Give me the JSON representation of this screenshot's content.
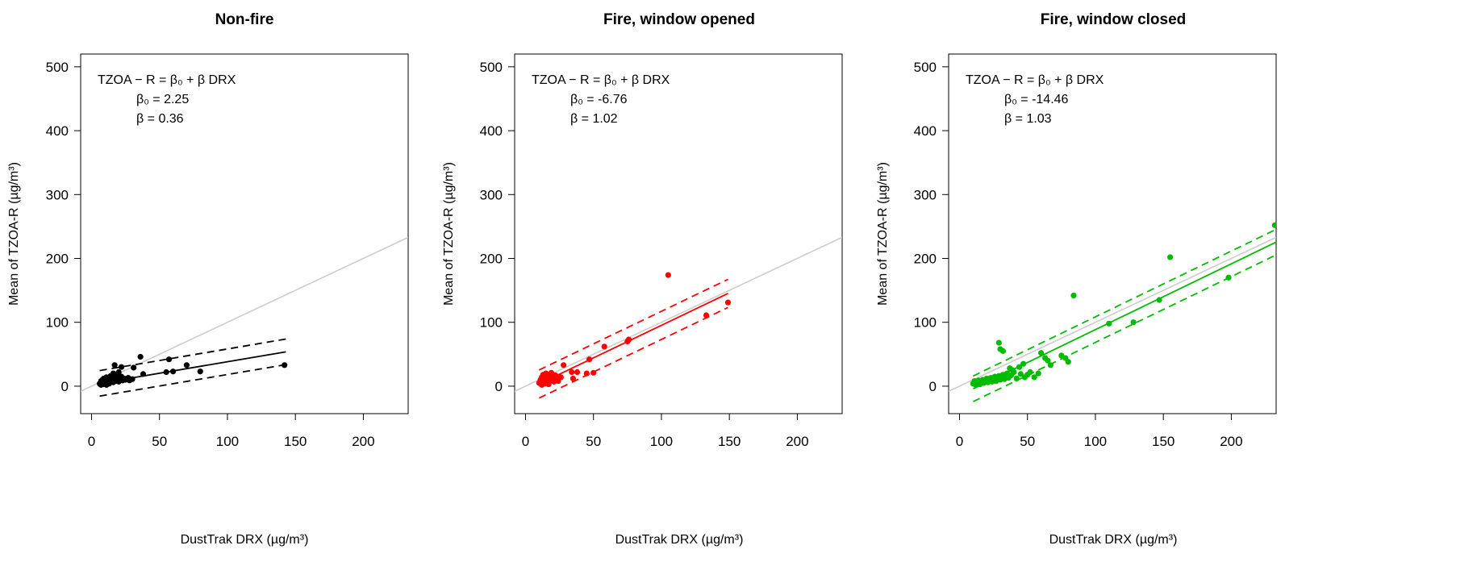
{
  "chart_data": [
    {
      "type": "scatter",
      "title": "Non-fire",
      "xlabel": "DustTrak DRX (µg/m³)",
      "ylabel": "Mean of TZOA-R (µg/m³)",
      "xlim": [
        -8,
        233
      ],
      "ylim": [
        -43,
        520
      ],
      "xticks": [
        "0",
        "50",
        "100",
        "150",
        "200"
      ],
      "yticks": [
        "0",
        "100",
        "200",
        "300",
        "400",
        "500"
      ],
      "color": "#000000",
      "annotation": {
        "equation": "TZOA − R = β₀ + β DRX",
        "beta0_label": "β₀ = 2.25",
        "beta_label": "β = 0.36"
      },
      "fit": {
        "intercept": 2.25,
        "slope": 0.36,
        "x_range": [
          6,
          143
        ],
        "band_offset": 20
      },
      "reference_line": {
        "slope": 1,
        "intercept": 0,
        "color": "#cccccc"
      },
      "points": [
        [
          6,
          4
        ],
        [
          7,
          8
        ],
        [
          7,
          2
        ],
        [
          8,
          6
        ],
        [
          8,
          10
        ],
        [
          9,
          3
        ],
        [
          9,
          12
        ],
        [
          10,
          5
        ],
        [
          10,
          8
        ],
        [
          11,
          2
        ],
        [
          11,
          14
        ],
        [
          12,
          6
        ],
        [
          12,
          9
        ],
        [
          13,
          11
        ],
        [
          13,
          4
        ],
        [
          14,
          7
        ],
        [
          14,
          16
        ],
        [
          15,
          9
        ],
        [
          15,
          12
        ],
        [
          16,
          6
        ],
        [
          16,
          20
        ],
        [
          17,
          10
        ],
        [
          17,
          33
        ],
        [
          18,
          8
        ],
        [
          18,
          14
        ],
        [
          19,
          12
        ],
        [
          19,
          17
        ],
        [
          20,
          7
        ],
        [
          20,
          22
        ],
        [
          21,
          10
        ],
        [
          22,
          15
        ],
        [
          22,
          30
        ],
        [
          23,
          9
        ],
        [
          24,
          12
        ],
        [
          25,
          10
        ],
        [
          26,
          11
        ],
        [
          27,
          13
        ],
        [
          28,
          9
        ],
        [
          30,
          11
        ],
        [
          31,
          29
        ],
        [
          36,
          46
        ],
        [
          38,
          19
        ],
        [
          55,
          22
        ],
        [
          57,
          42
        ],
        [
          60,
          23
        ],
        [
          70,
          33
        ],
        [
          80,
          23
        ],
        [
          142,
          33
        ]
      ]
    },
    {
      "type": "scatter",
      "title": "Fire, window opened",
      "xlabel": "DustTrak DRX (µg/m³)",
      "ylabel": "Mean of TZOA-R (µg/m³)",
      "xlim": [
        -8,
        233
      ],
      "ylim": [
        -43,
        520
      ],
      "xticks": [
        "0",
        "50",
        "100",
        "150",
        "200"
      ],
      "yticks": [
        "0",
        "100",
        "200",
        "300",
        "400",
        "500"
      ],
      "color": "#ff0000",
      "annotation": {
        "equation": "TZOA − R = β₀ + β DRX",
        "beta0_label": "β₀ = -6.76",
        "beta_label": "β = 1.02"
      },
      "fit": {
        "intercept": -6.76,
        "slope": 1.02,
        "x_range": [
          10,
          149
        ],
        "band_offset": 22
      },
      "reference_line": {
        "slope": 1,
        "intercept": 0,
        "color": "#cccccc"
      },
      "points": [
        [
          10,
          5
        ],
        [
          11,
          10
        ],
        [
          12,
          2
        ],
        [
          12,
          14
        ],
        [
          13,
          7
        ],
        [
          13,
          18
        ],
        [
          14,
          4
        ],
        [
          14,
          12
        ],
        [
          15,
          9
        ],
        [
          15,
          20
        ],
        [
          16,
          6
        ],
        [
          16,
          15
        ],
        [
          17,
          11
        ],
        [
          17,
          3
        ],
        [
          18,
          16
        ],
        [
          18,
          8
        ],
        [
          19,
          13
        ],
        [
          19,
          21
        ],
        [
          20,
          10
        ],
        [
          21,
          7
        ],
        [
          22,
          17
        ],
        [
          23,
          12
        ],
        [
          24,
          8
        ],
        [
          26,
          14
        ],
        [
          28,
          33
        ],
        [
          34,
          22
        ],
        [
          35,
          12
        ],
        [
          38,
          22
        ],
        [
          45,
          20
        ],
        [
          47,
          42
        ],
        [
          50,
          21
        ],
        [
          58,
          62
        ],
        [
          75,
          70
        ],
        [
          76,
          73
        ],
        [
          105,
          174
        ],
        [
          133,
          111
        ],
        [
          149,
          131
        ]
      ]
    },
    {
      "type": "scatter",
      "title": "Fire, window closed",
      "xlabel": "DustTrak DRX (µg/m³)",
      "ylabel": "Mean of TZOA-R (µg/m³)",
      "xlim": [
        -8,
        233
      ],
      "ylim": [
        -43,
        520
      ],
      "xticks": [
        "0",
        "50",
        "100",
        "150",
        "200"
      ],
      "yticks": [
        "0",
        "100",
        "200",
        "300",
        "400",
        "500"
      ],
      "color": "#00bb00",
      "annotation": {
        "equation": "TZOA − R = β₀ + β DRX",
        "beta0_label": "β₀ = -14.46",
        "beta_label": "β = 1.03"
      },
      "fit": {
        "intercept": -14.46,
        "slope": 1.03,
        "x_range": [
          10,
          235
        ],
        "band_offset": 20
      },
      "reference_line": {
        "slope": 1,
        "intercept": 0,
        "color": "#cccccc"
      },
      "points": [
        [
          10,
          4
        ],
        [
          11,
          8
        ],
        [
          12,
          2
        ],
        [
          13,
          6
        ],
        [
          14,
          9
        ],
        [
          15,
          3
        ],
        [
          16,
          7
        ],
        [
          17,
          10
        ],
        [
          18,
          5
        ],
        [
          19,
          8
        ],
        [
          20,
          12
        ],
        [
          21,
          6
        ],
        [
          22,
          9
        ],
        [
          23,
          13
        ],
        [
          24,
          7
        ],
        [
          25,
          11
        ],
        [
          26,
          15
        ],
        [
          27,
          8
        ],
        [
          28,
          12
        ],
        [
          29,
          16
        ],
        [
          29,
          68
        ],
        [
          30,
          10
        ],
        [
          30,
          58
        ],
        [
          31,
          14
        ],
        [
          32,
          18
        ],
        [
          32,
          55
        ],
        [
          33,
          11
        ],
        [
          34,
          15
        ],
        [
          35,
          20
        ],
        [
          36,
          13
        ],
        [
          37,
          28
        ],
        [
          38,
          17
        ],
        [
          39,
          25
        ],
        [
          40,
          22
        ],
        [
          42,
          12
        ],
        [
          44,
          30
        ],
        [
          45,
          19
        ],
        [
          47,
          35
        ],
        [
          48,
          14
        ],
        [
          50,
          18
        ],
        [
          52,
          22
        ],
        [
          55,
          14
        ],
        [
          58,
          20
        ],
        [
          60,
          52
        ],
        [
          63,
          44
        ],
        [
          65,
          40
        ],
        [
          67,
          33
        ],
        [
          75,
          48
        ],
        [
          78,
          44
        ],
        [
          80,
          38
        ],
        [
          84,
          142
        ],
        [
          110,
          98
        ],
        [
          128,
          100
        ],
        [
          147,
          135
        ],
        [
          155,
          202
        ],
        [
          198,
          170
        ],
        [
          232,
          252
        ]
      ]
    }
  ]
}
